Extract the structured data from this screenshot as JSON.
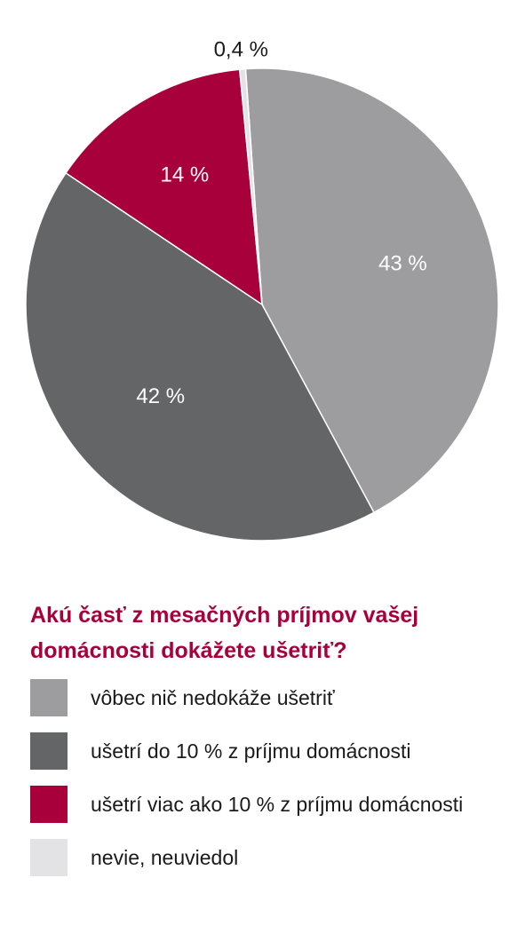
{
  "chart_data": {
    "type": "pie",
    "title": "Akú časť z mesačných príjmov vašej domácnosti dokážete ušetriť?",
    "start_angle_deg": -4,
    "direction": "clockwise",
    "slices": [
      {
        "name": "vôbec nič nedokáže ušetriť",
        "value": 43,
        "label": "43 %",
        "color": "#9d9d9f",
        "label_color": "#ffffff"
      },
      {
        "name": "ušetrí do 10 % z príjmu domácnosti",
        "value": 42,
        "label": "42 %",
        "color": "#646567",
        "label_color": "#ffffff"
      },
      {
        "name": "ušetrí viac ako 10 % z príjmu domácnosti",
        "value": 14,
        "label": "14 %",
        "color": "#a8003a",
        "label_color": "#ffffff"
      },
      {
        "name": "nevie, neuviedol",
        "value": 0.4,
        "label": "0,4 %",
        "color": "#e3e3e5",
        "label_color": "#1a1a1a"
      }
    ],
    "legend_position": "bottom"
  }
}
